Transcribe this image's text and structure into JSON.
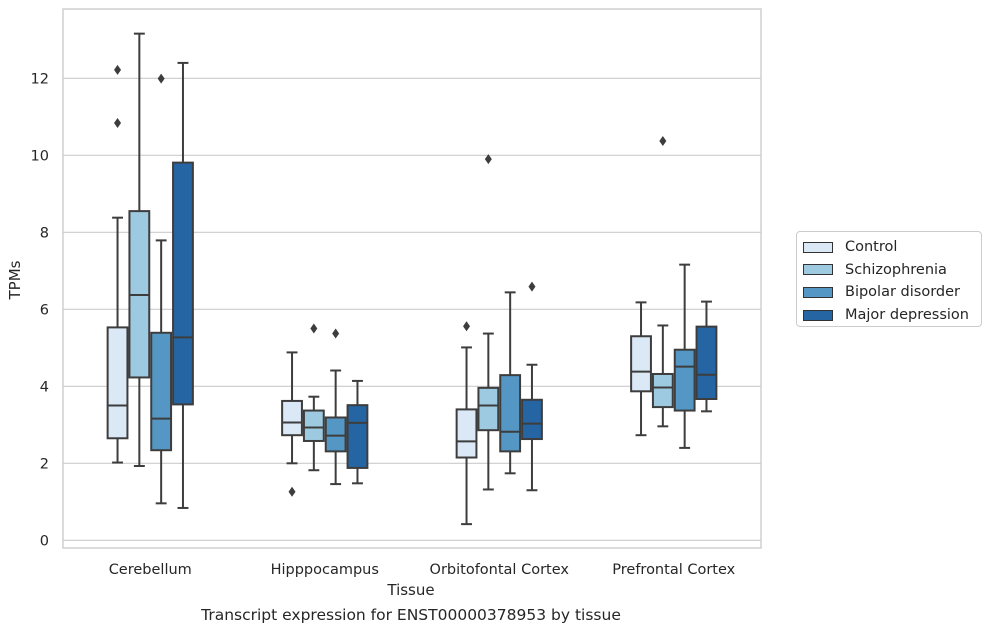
{
  "chart_data": {
    "type": "box",
    "xlabel": "Tissue",
    "ylabel": "TPMs",
    "caption": "Transcript expression for ENST00000378953 by tissue",
    "ylim": [
      -0.2,
      13.8
    ],
    "yticks": [
      0,
      2,
      4,
      6,
      8,
      10,
      12
    ],
    "grid": true,
    "legend_position": "right",
    "categories": [
      "Cerebellum",
      "Hipppocampus",
      "Orbitofontal Cortex",
      "Prefrontal Cortex"
    ],
    "series": [
      {
        "name": "Control",
        "color": "#dbe8f5",
        "boxes": [
          {
            "min": 2.02,
            "q1": 2.65,
            "median": 3.5,
            "q3": 5.53,
            "max": 8.38,
            "outliers": [
              12.22,
              10.84
            ]
          },
          {
            "min": 2.0,
            "q1": 2.73,
            "median": 3.06,
            "q3": 3.62,
            "max": 4.88,
            "outliers": [
              1.26
            ]
          },
          {
            "min": 0.42,
            "q1": 2.15,
            "median": 2.57,
            "q3": 3.4,
            "max": 5.01,
            "outliers": [
              5.56
            ]
          },
          {
            "min": 2.73,
            "q1": 3.87,
            "median": 4.38,
            "q3": 5.3,
            "max": 6.18,
            "outliers": []
          }
        ]
      },
      {
        "name": "Schizophrenia",
        "color": "#9ecae1",
        "boxes": [
          {
            "min": 1.93,
            "q1": 4.23,
            "median": 6.37,
            "q3": 8.55,
            "max": 13.16,
            "outliers": []
          },
          {
            "min": 1.82,
            "q1": 2.58,
            "median": 2.93,
            "q3": 3.37,
            "max": 3.73,
            "outliers": [
              5.5
            ]
          },
          {
            "min": 1.32,
            "q1": 2.86,
            "median": 3.5,
            "q3": 3.96,
            "max": 5.37,
            "outliers": [
              9.9
            ]
          },
          {
            "min": 2.96,
            "q1": 3.46,
            "median": 3.97,
            "q3": 4.32,
            "max": 5.58,
            "outliers": [
              10.37
            ]
          }
        ]
      },
      {
        "name": "Bipolar disorder",
        "color": "#5497c4",
        "boxes": [
          {
            "min": 0.96,
            "q1": 2.34,
            "median": 3.16,
            "q3": 5.39,
            "max": 7.79,
            "outliers": [
              11.99
            ]
          },
          {
            "min": 1.46,
            "q1": 2.31,
            "median": 2.72,
            "q3": 3.19,
            "max": 4.41,
            "outliers": [
              5.37
            ]
          },
          {
            "min": 1.74,
            "q1": 2.31,
            "median": 2.82,
            "q3": 4.29,
            "max": 6.44,
            "outliers": []
          },
          {
            "min": 2.4,
            "q1": 3.37,
            "median": 4.51,
            "q3": 4.95,
            "max": 7.16,
            "outliers": []
          }
        ]
      },
      {
        "name": "Major depression",
        "color": "#2565a3",
        "boxes": [
          {
            "min": 0.84,
            "q1": 3.53,
            "median": 5.27,
            "q3": 9.81,
            "max": 12.4,
            "outliers": []
          },
          {
            "min": 1.48,
            "q1": 1.88,
            "median": 3.05,
            "q3": 3.51,
            "max": 4.14,
            "outliers": []
          },
          {
            "min": 1.3,
            "q1": 2.63,
            "median": 3.03,
            "q3": 3.65,
            "max": 4.56,
            "outliers": [
              6.59
            ]
          },
          {
            "min": 3.35,
            "q1": 3.67,
            "median": 4.3,
            "q3": 5.55,
            "max": 6.2,
            "outliers": []
          }
        ]
      }
    ]
  }
}
